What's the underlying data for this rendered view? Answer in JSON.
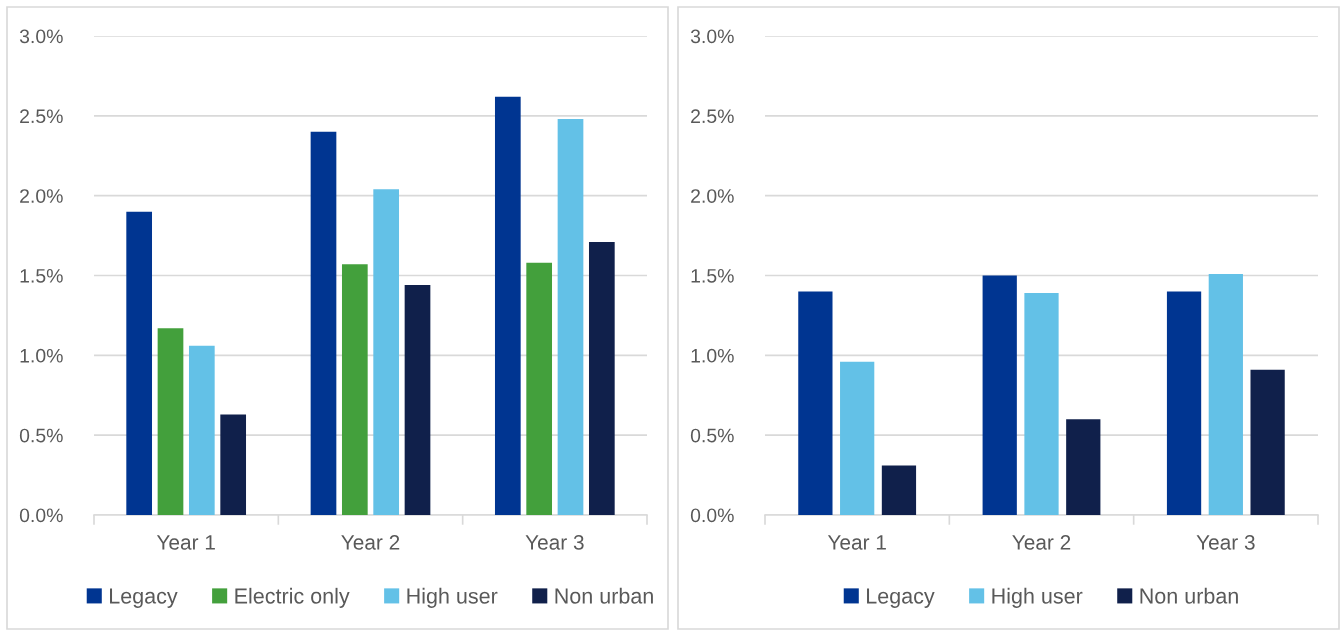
{
  "chart_data": [
    {
      "type": "bar",
      "categories": [
        "Year 1",
        "Year 2",
        "Year 3"
      ],
      "series": [
        {
          "name": "Legacy",
          "color": "#003591",
          "values": [
            1.9,
            2.4,
            2.62
          ]
        },
        {
          "name": "Electric only",
          "color": "#43A03C",
          "values": [
            1.17,
            1.57,
            1.58
          ]
        },
        {
          "name": "High user",
          "color": "#63C1E7",
          "values": [
            1.06,
            2.04,
            2.48
          ]
        },
        {
          "name": "Non urban",
          "color": "#10204B",
          "values": [
            0.63,
            1.44,
            1.71
          ]
        }
      ],
      "ylim": [
        0,
        3
      ],
      "yticks": [
        {
          "value": 0,
          "label": "0.0%"
        },
        {
          "value": 0.5,
          "label": "0.5%"
        },
        {
          "value": 1,
          "label": "1.0%"
        },
        {
          "value": 1.5,
          "label": "1.5%"
        },
        {
          "value": 2,
          "label": "2.0%"
        },
        {
          "value": 2.5,
          "label": "2.5%"
        },
        {
          "value": 3,
          "label": "3.0%"
        }
      ],
      "grid": "y",
      "legend": "bottom"
    },
    {
      "type": "bar",
      "categories": [
        "Year 1",
        "Year 2",
        "Year 3"
      ],
      "series": [
        {
          "name": "Legacy",
          "color": "#003591",
          "values": [
            1.4,
            1.5,
            1.4
          ]
        },
        {
          "name": "High user",
          "color": "#63C1E7",
          "values": [
            0.96,
            1.39,
            1.51
          ]
        },
        {
          "name": "Non urban",
          "color": "#10204B",
          "values": [
            0.31,
            0.6,
            0.91
          ]
        }
      ],
      "ylim": [
        0,
        3
      ],
      "yticks": [
        {
          "value": 0,
          "label": "0.0%"
        },
        {
          "value": 0.5,
          "label": "0.5%"
        },
        {
          "value": 1,
          "label": "1.0%"
        },
        {
          "value": 1.5,
          "label": "1.5%"
        },
        {
          "value": 2,
          "label": "2.0%"
        },
        {
          "value": 2.5,
          "label": "2.5%"
        },
        {
          "value": 3,
          "label": "3.0%"
        }
      ],
      "grid": "y",
      "legend": "bottom"
    }
  ]
}
